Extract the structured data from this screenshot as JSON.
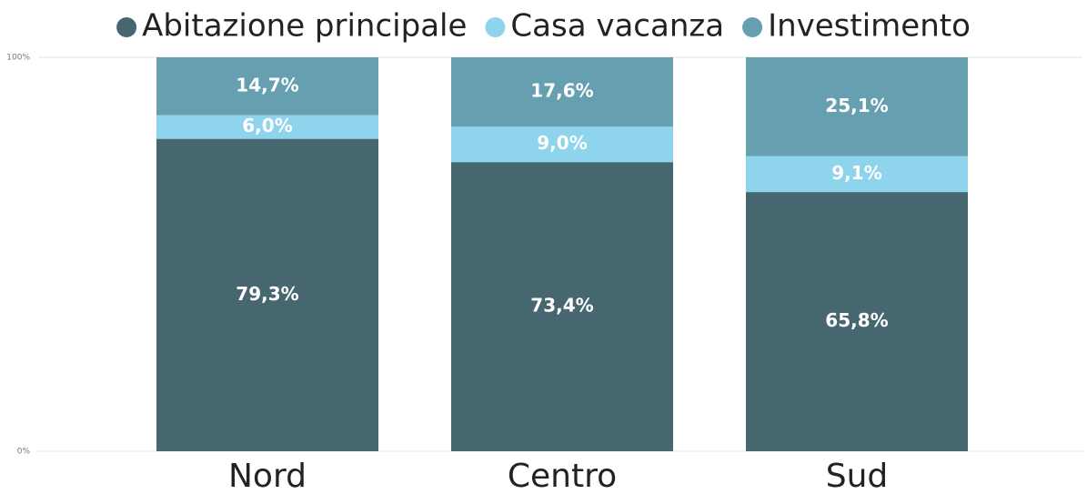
{
  "chart_data": {
    "type": "stacked_bar",
    "categories": [
      "Nord",
      "Centro",
      "Sud"
    ],
    "series": [
      {
        "name": "Abitazione principale",
        "color": "#46676f",
        "values": [
          79.3,
          73.4,
          65.8
        ],
        "value_labels": [
          "79,3%",
          "73,4%",
          "65,8%"
        ]
      },
      {
        "name": "Casa vacanza",
        "color": "#8dd4ec",
        "values": [
          6.0,
          9.0,
          9.1
        ],
        "value_labels": [
          "6,0%",
          "9,0%",
          "9,1%"
        ]
      },
      {
        "name": "Investimento",
        "color": "#66a0b0",
        "values": [
          14.7,
          17.6,
          25.1
        ],
        "value_labels": [
          "14,7%",
          "17,6%",
          "25,1%"
        ]
      }
    ],
    "ylim": [
      0,
      100
    ],
    "yticks": [
      {
        "value": 0,
        "label": "0%"
      },
      {
        "value": 100,
        "label": "100%"
      }
    ],
    "grid": true,
    "legend": "top"
  }
}
